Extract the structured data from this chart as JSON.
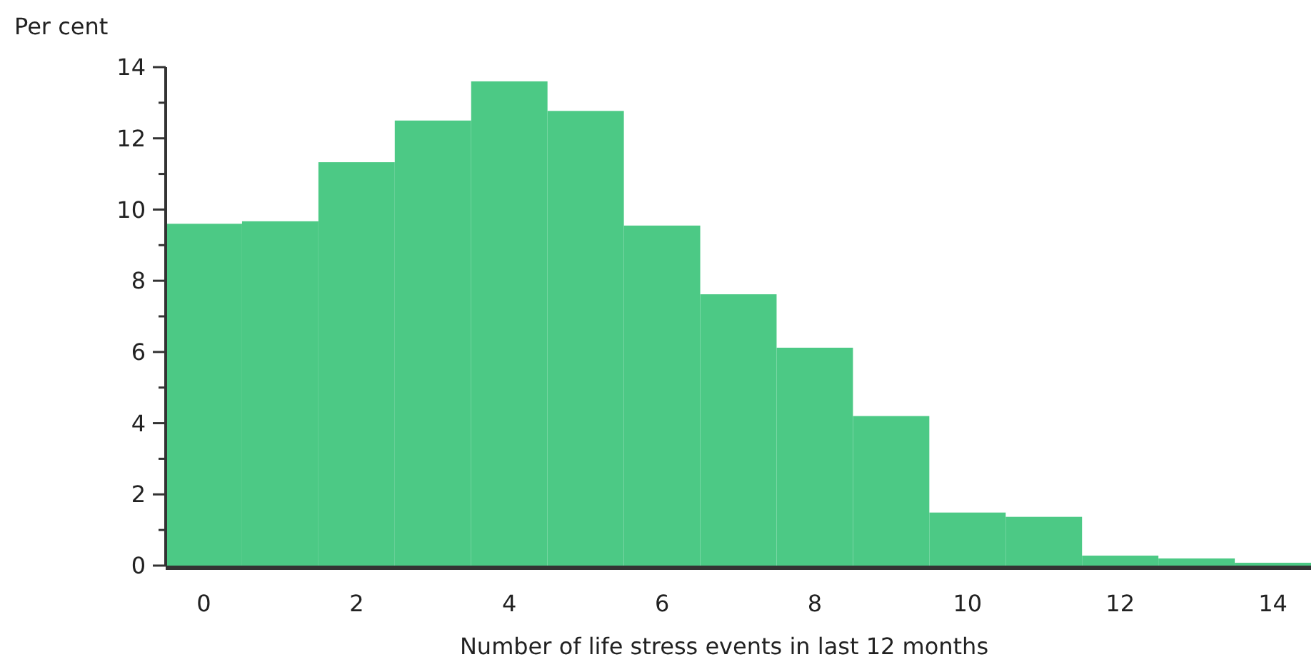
{
  "chart_data": {
    "type": "histogram",
    "ylabel": "Per cent",
    "xlabel": "Number of life stress events in last 12 months",
    "bins": [
      -0.5,
      0.5,
      1.5,
      2.5,
      3.5,
      4.5,
      5.5,
      6.5,
      7.5,
      8.5,
      9.5,
      10.5,
      11.5,
      12.5,
      13.5,
      14.5
    ],
    "values": [
      9.6,
      9.67,
      11.33,
      12.5,
      13.6,
      12.77,
      9.55,
      7.62,
      6.12,
      4.2,
      1.49,
      1.37,
      0.28,
      0.2,
      0.08
    ],
    "color": "#4cc985",
    "xlim": [
      -0.5,
      14.5
    ],
    "xticks": [
      0,
      2,
      4,
      6,
      8,
      10,
      12,
      14
    ],
    "ylim": [
      0,
      14
    ],
    "yticks": [
      0,
      {
        "value": 1,
        "label": null
      },
      2,
      {
        "value": 3,
        "label": null
      },
      4,
      {
        "value": 5,
        "label": null
      },
      6,
      {
        "value": 7,
        "label": null
      },
      8,
      {
        "value": 9,
        "label": null
      },
      10,
      {
        "value": 11,
        "label": null
      },
      12,
      {
        "value": 13,
        "label": null
      },
      14
    ],
    "grid": false
  }
}
